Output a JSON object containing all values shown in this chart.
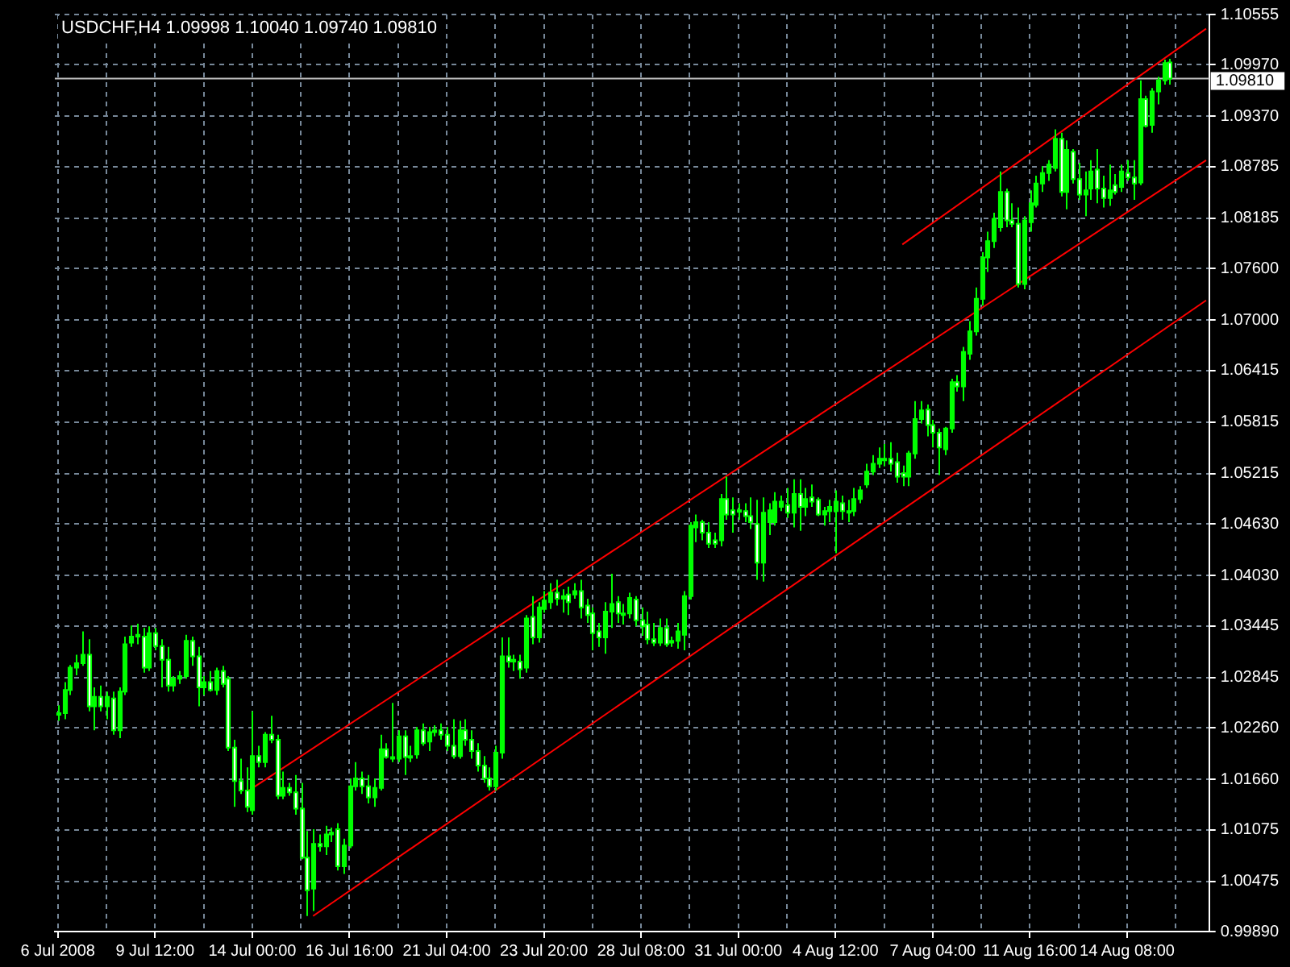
{
  "chart_data": {
    "type": "candlestick",
    "title": "USDCHF,H4 1.09998 1.10040 1.09740 1.09810",
    "color": "#00ff00",
    "colors": [
      "#00ff00",
      "#00ff00",
      "#00ff00",
      "#00ff00",
      "#00ff00",
      "#ffffff",
      "#00ff00",
      "#ffffff",
      "#00ff00",
      "#ffffff",
      "#00ff00",
      "#00ff00",
      "#00ff00",
      "#00ff00",
      "#ffffff",
      "#00ff00",
      "#ffffff",
      "#ffffff",
      "#ffffff",
      "#00ff00",
      "#00ff00",
      "#00ff00",
      "#ffffff",
      "#ffffff",
      "#00ff00",
      "#ffffff",
      "#00ff00",
      "#ffffff",
      "#ffffff",
      "#ffffff",
      "#ffffff",
      "#ffffff",
      "#00ff00",
      "#ffffff",
      "#00ff00",
      "#ffffff",
      "#ffffff",
      "#00ff00",
      "#ffffff",
      "#ffffff",
      "#ffffff",
      "#ffffff",
      "#00ff00",
      "#ffffff",
      "#00ff00",
      "#00ff00",
      "#ffffff",
      "#00ff00",
      "#00ff00",
      "#00ff00",
      "#ffffff",
      "#ffffff",
      "#00ff00",
      "#00ff00",
      "#ffffff",
      "#ffffff",
      "#00ff00",
      "#ffffff",
      "#00ff00",
      "#00ff00",
      "#ffffff",
      "#00ff00",
      "#00ff00",
      "#ffffff",
      "#ffffff",
      "#ffffff",
      "#00ff00",
      "#ffffff",
      "#ffffff",
      "#ffffff",
      "#ffffff",
      "#ffffff",
      "#00ff00",
      "#00ff00",
      "#ffffff",
      "#00ff00",
      "#ffffff",
      "#00ff00",
      "#ffffff",
      "#00ff00",
      "#00ff00",
      "#00ff00",
      "#ffffff",
      "#00ff00",
      "#ffffff",
      "#00ff00",
      "#ffffff",
      "#ffffff",
      "#ffffff",
      "#ffffff",
      "#00ff00",
      "#00ff00",
      "#ffffff",
      "#ffffff",
      "#00ff00",
      "#ffffff",
      "#ffffff",
      "#ffffff",
      "#ffffff",
      "#00ff00",
      "#ffffff",
      "#00ff00",
      "#00ff00",
      "#00ff00",
      "#00ff00",
      "#00ff00",
      "#ffffff",
      "#ffffff",
      "#ffffff",
      "#00ff00",
      "#ffffff",
      "#ffffff",
      "#ffffff",
      "#ffffff",
      "#ffffff",
      "#ffffff",
      "#00ff00",
      "#00ff00",
      "#00ff00",
      "#00ff00",
      "#ffffff",
      "#00ff00",
      "#ffffff",
      "#00ff00",
      "#ffffff",
      "#ffffff",
      "#00ff00",
      "#00ff00",
      "#00ff00",
      "#ffffff",
      "#ffffff",
      "#00ff00",
      "#00ff00",
      "#00ff00",
      "#00ff00",
      "#00ff00",
      "#ffffff",
      "#ffffff",
      "#ffffff",
      "#ffffff",
      "#00ff00",
      "#00ff00",
      "#00ff00",
      "#ffffff",
      "#ffffff",
      "#ffffff",
      "#00ff00",
      "#00ff00",
      "#ffffff",
      "#00ff00",
      "#00ff00",
      "#00ff00",
      "#00ff00",
      "#00ff00",
      "#00ff00",
      "#00ff00",
      "#ffffff",
      "#ffffff",
      "#ffffff",
      "#00ff00",
      "#00ff00",
      "#00ff00",
      "#00ff00",
      "#00ff00",
      "#00ff00",
      "#ffffff",
      "#00ff00",
      "#ffffff",
      "#ffffff",
      "#00ff00",
      "#00ff00",
      "#ffffff",
      "#ffffff",
      "#00ff00",
      "#ffffff",
      "#00ff00",
      "#ffffff",
      "#ffffff",
      "#00ff00",
      "#ffffff",
      "#00ff00",
      "#00ff00",
      "#00ff00",
      "#ffffff",
      null,
      null,
      null,
      null,
      null,
      null
    ],
    "categories": [
      "6 Jul 2008",
      null,
      null,
      null,
      null,
      null,
      null,
      null,
      null,
      null,
      null,
      null,
      null,
      null,
      null,
      null,
      "9 Jul 12:00",
      null,
      null,
      null,
      null,
      null,
      null,
      null,
      null,
      null,
      null,
      null,
      null,
      null,
      null,
      null,
      "14 Jul 00:00",
      null,
      null,
      null,
      null,
      null,
      null,
      null,
      null,
      null,
      null,
      null,
      null,
      null,
      null,
      null,
      "16 Jul 16:00",
      null,
      null,
      null,
      null,
      null,
      null,
      null,
      null,
      null,
      null,
      null,
      null,
      null,
      null,
      null,
      "21 Jul 04:00",
      null,
      null,
      null,
      null,
      null,
      null,
      null,
      null,
      null,
      null,
      null,
      null,
      null,
      null,
      null,
      "23 Jul 20:00",
      null,
      null,
      null,
      null,
      null,
      null,
      null,
      null,
      null,
      null,
      null,
      null,
      null,
      null,
      null,
      "28 Jul 08:00",
      null,
      null,
      null,
      null,
      null,
      null,
      null,
      null,
      null,
      null,
      null,
      null,
      null,
      null,
      null,
      "31 Jul 00:00",
      null,
      null,
      null,
      null,
      null,
      null,
      null,
      null,
      null,
      null,
      null,
      null,
      null,
      null,
      null,
      "4 Aug 12:00",
      null,
      null,
      null,
      null,
      null,
      null,
      null,
      null,
      null,
      null,
      null,
      null,
      null,
      null,
      null,
      "7 Aug 04:00",
      null,
      null,
      null,
      null,
      null,
      null,
      null,
      null,
      null,
      null,
      null,
      null,
      null,
      null,
      null,
      "11 Aug 16:00",
      null,
      null,
      null,
      null,
      null,
      null,
      null,
      null,
      null,
      null,
      null,
      null,
      null,
      null,
      null,
      "14 Aug 08:00",
      null,
      null,
      null,
      null,
      null,
      null,
      null,
      null,
      null,
      null,
      null,
      null,
      null
    ],
    "ohlc": [
      [
        1.0241,
        1.0252,
        1.0234,
        1.0243
      ],
      [
        1.0243,
        1.0279,
        1.0236,
        1.027
      ],
      [
        1.027,
        1.0299,
        1.0264,
        1.0296
      ],
      [
        1.0296,
        1.0311,
        1.0287,
        1.0301
      ],
      [
        1.0301,
        1.0338,
        1.0298,
        1.0311
      ],
      [
        1.0311,
        1.0329,
        1.0245,
        1.0251
      ],
      [
        1.0251,
        1.0273,
        1.0223,
        1.0262
      ],
      [
        1.0262,
        1.0275,
        1.0245,
        1.0251
      ],
      [
        1.0251,
        1.0268,
        1.0236,
        1.0262
      ],
      [
        1.026,
        1.0268,
        1.0218,
        1.0223
      ],
      [
        1.0223,
        1.0273,
        1.0214,
        1.0268
      ],
      [
        1.0268,
        1.0332,
        1.0264,
        1.0323
      ],
      [
        1.0325,
        1.0345,
        1.032,
        1.0332
      ],
      [
        1.0332,
        1.0347,
        1.0323,
        1.0334
      ],
      [
        1.0332,
        1.0342,
        1.029,
        1.0296
      ],
      [
        1.0296,
        1.0344,
        1.0292,
        1.0336
      ],
      [
        1.0336,
        1.0342,
        1.0316,
        1.0321
      ],
      [
        1.0321,
        1.0329,
        1.0273,
        1.0305
      ],
      [
        1.0305,
        1.032,
        1.0268,
        1.0275
      ],
      [
        1.0275,
        1.0286,
        1.0268,
        1.0283
      ],
      [
        1.0283,
        1.0292,
        1.0277,
        1.0286
      ],
      [
        1.0286,
        1.0334,
        1.0283,
        1.0327
      ],
      [
        1.0327,
        1.0332,
        1.0298,
        1.0309
      ],
      [
        1.0309,
        1.032,
        1.0251,
        1.0273
      ],
      [
        1.0273,
        1.0286,
        1.0264,
        1.0279
      ],
      [
        1.0279,
        1.0292,
        1.0268,
        1.027
      ],
      [
        1.027,
        1.0296,
        1.0264,
        1.0292
      ],
      [
        1.0292,
        1.0298,
        1.0273,
        1.0277
      ],
      [
        1.0283,
        1.0286,
        1.0199,
        1.0203
      ],
      [
        1.0203,
        1.0212,
        1.0134,
        1.0164
      ],
      [
        1.0164,
        1.019,
        1.0149,
        1.0153
      ],
      [
        1.0153,
        1.018,
        1.0128,
        1.0134
      ],
      [
        1.013,
        1.0245,
        1.0125,
        1.0193
      ],
      [
        1.0193,
        1.0205,
        1.018,
        1.0186
      ],
      [
        1.0186,
        1.0221,
        1.018,
        1.0218
      ],
      [
        1.0218,
        1.024,
        1.0208,
        1.0212
      ],
      [
        1.0212,
        1.0218,
        1.0143,
        1.0147
      ],
      [
        1.0147,
        1.0175,
        1.0143,
        1.0156
      ],
      [
        1.0156,
        1.0162,
        1.0147,
        1.0151
      ],
      [
        1.0151,
        1.0171,
        1.0125,
        1.0132
      ],
      [
        1.0132,
        1.0162,
        1.0073,
        1.0075
      ],
      [
        1.0075,
        1.0106,
        1.0007,
        1.0037
      ],
      [
        1.0039,
        1.0108,
        1.0013,
        1.0091
      ],
      [
        1.0091,
        1.0102,
        1.0082,
        1.0088
      ],
      [
        1.0088,
        1.0112,
        1.0078,
        1.0102
      ],
      [
        1.0102,
        1.011,
        1.0093,
        1.0104
      ],
      [
        1.0108,
        1.0115,
        1.006,
        1.0065
      ],
      [
        1.0065,
        1.0097,
        1.0056,
        1.0089
      ],
      [
        1.0089,
        1.0167,
        1.0086,
        1.0158
      ],
      [
        1.0158,
        1.0186,
        1.0153,
        1.0167
      ],
      [
        1.0167,
        1.0175,
        1.0149,
        1.0158
      ],
      [
        1.0158,
        1.0171,
        1.0138,
        1.0145
      ],
      [
        1.0145,
        1.0167,
        1.0134,
        1.0156
      ],
      [
        1.0156,
        1.0218,
        1.0153,
        1.0201
      ],
      [
        1.0201,
        1.0208,
        1.019,
        1.0192
      ],
      [
        1.0192,
        1.0255,
        1.0186,
        1.019
      ],
      [
        1.019,
        1.0223,
        1.0186,
        1.0216
      ],
      [
        1.0216,
        1.0223,
        1.0171,
        1.0192
      ],
      [
        1.0192,
        1.0205,
        1.0186,
        1.0193
      ],
      [
        1.0195,
        1.0227,
        1.019,
        1.0223
      ],
      [
        1.0223,
        1.0231,
        1.0205,
        1.0208
      ],
      [
        1.021,
        1.0227,
        1.0199,
        1.0221
      ],
      [
        1.0221,
        1.0229,
        1.0216,
        1.0223
      ],
      [
        1.0223,
        1.0231,
        1.0212,
        1.0218
      ],
      [
        1.0218,
        1.0227,
        1.0199,
        1.0205
      ],
      [
        1.0205,
        1.0236,
        1.019,
        1.0193
      ],
      [
        1.0193,
        1.0234,
        1.019,
        1.0223
      ],
      [
        1.0223,
        1.0236,
        1.0205,
        1.0212
      ],
      [
        1.0212,
        1.0223,
        1.019,
        1.0199
      ],
      [
        1.0199,
        1.0208,
        1.0175,
        1.0182
      ],
      [
        1.0182,
        1.0193,
        1.0162,
        1.0167
      ],
      [
        1.0167,
        1.018,
        1.0153,
        1.0158
      ],
      [
        1.0158,
        1.0205,
        1.0153,
        1.0197
      ],
      [
        1.0197,
        1.0331,
        1.019,
        1.0309
      ],
      [
        1.0309,
        1.0331,
        1.0296,
        1.0303
      ],
      [
        1.0303,
        1.0311,
        1.0292,
        1.0305
      ],
      [
        1.0303,
        1.0311,
        1.0283,
        1.0294
      ],
      [
        1.0296,
        1.0357,
        1.029,
        1.0353
      ],
      [
        1.0355,
        1.0379,
        1.0323,
        1.0331
      ],
      [
        1.0331,
        1.0372,
        1.0325,
        1.0366
      ],
      [
        1.0364,
        1.0385,
        1.036,
        1.0374
      ],
      [
        1.0372,
        1.0394,
        1.0364,
        1.0383
      ],
      [
        1.0383,
        1.0398,
        1.0368,
        1.0376
      ],
      [
        1.0376,
        1.0387,
        1.036,
        1.0379
      ],
      [
        1.0381,
        1.039,
        1.0357,
        1.0372
      ],
      [
        1.0381,
        1.0394,
        1.0376,
        1.0385
      ],
      [
        1.0385,
        1.0398,
        1.0353,
        1.0366
      ],
      [
        1.0368,
        1.0376,
        1.0348,
        1.0357
      ],
      [
        1.0359,
        1.0366,
        1.0316,
        1.0336
      ],
      [
        1.0338,
        1.0348,
        1.032,
        1.0331
      ],
      [
        1.0331,
        1.0372,
        1.0312,
        1.0361
      ],
      [
        1.0361,
        1.0405,
        1.0342,
        1.037
      ],
      [
        1.0372,
        1.0379,
        1.0348,
        1.0359
      ],
      [
        1.0359,
        1.037,
        1.0346,
        1.0357
      ],
      [
        1.0359,
        1.0383,
        1.0353,
        1.0377
      ],
      [
        1.0375,
        1.0379,
        1.0344,
        1.0351
      ],
      [
        1.0351,
        1.0366,
        1.0333,
        1.0344
      ],
      [
        1.0346,
        1.0361,
        1.0323,
        1.0329
      ],
      [
        1.0329,
        1.0348,
        1.0321,
        1.0325
      ],
      [
        1.0325,
        1.0353,
        1.0321,
        1.0342
      ],
      [
        1.0342,
        1.0353,
        1.032,
        1.0323
      ],
      [
        1.0325,
        1.0332,
        1.032,
        1.0327
      ],
      [
        1.0327,
        1.0348,
        1.0318,
        1.0338
      ],
      [
        1.0334,
        1.0385,
        1.0316,
        1.0379
      ],
      [
        1.0379,
        1.0465,
        1.0375,
        1.0461
      ],
      [
        1.0459,
        1.0474,
        1.0442,
        1.0465
      ],
      [
        1.0465,
        1.0468,
        1.0444,
        1.0453
      ],
      [
        1.0453,
        1.0465,
        1.0435,
        1.044
      ],
      [
        1.0444,
        1.0453,
        1.0435,
        1.044
      ],
      [
        1.0444,
        1.0498,
        1.0437,
        1.0492
      ],
      [
        1.0492,
        1.0518,
        1.0468,
        1.0474
      ],
      [
        1.0479,
        1.0494,
        1.0453,
        1.0474
      ],
      [
        1.0479,
        1.0487,
        1.0468,
        1.0478
      ],
      [
        1.0478,
        1.0487,
        1.0465,
        1.0472
      ],
      [
        1.0472,
        1.0494,
        1.0457,
        1.0465
      ],
      [
        1.0463,
        1.0491,
        1.0398,
        1.0418
      ],
      [
        1.0418,
        1.0494,
        1.0396,
        1.0476
      ],
      [
        1.0465,
        1.0487,
        1.045,
        1.0479
      ],
      [
        1.0465,
        1.05,
        1.0461,
        1.0489
      ],
      [
        1.0483,
        1.0496,
        1.0478,
        1.0489
      ],
      [
        1.0485,
        1.0505,
        1.047,
        1.0476
      ],
      [
        1.0476,
        1.0515,
        1.0459,
        1.0498
      ],
      [
        1.0498,
        1.0515,
        1.0455,
        1.0483
      ],
      [
        1.0483,
        1.0505,
        1.0472,
        1.0492
      ],
      [
        1.0494,
        1.0509,
        1.0483,
        1.0489
      ],
      [
        1.0491,
        1.0494,
        1.0472,
        1.0474
      ],
      [
        1.0474,
        1.0483,
        1.0461,
        1.0478
      ],
      [
        1.0478,
        1.0491,
        1.0465,
        1.0483
      ],
      [
        1.0478,
        1.0502,
        1.0429,
        1.0489
      ],
      [
        1.0487,
        1.0496,
        1.0468,
        1.0478
      ],
      [
        1.0478,
        1.0491,
        1.0465,
        1.0476
      ],
      [
        1.0478,
        1.0505,
        1.0472,
        1.0492
      ],
      [
        1.0492,
        1.0507,
        1.0487,
        1.0502
      ],
      [
        1.0509,
        1.0533,
        1.0505,
        1.0524
      ],
      [
        1.0524,
        1.0543,
        1.052,
        1.0533
      ],
      [
        1.0533,
        1.0552,
        1.0528,
        1.0539
      ],
      [
        1.0539,
        1.0556,
        1.053,
        1.0537
      ],
      [
        1.0539,
        1.0558,
        1.0524,
        1.0533
      ],
      [
        1.0535,
        1.0546,
        1.0511,
        1.0518
      ],
      [
        1.0522,
        1.0531,
        1.0507,
        1.0518
      ],
      [
        1.0518,
        1.0548,
        1.0507,
        1.0545
      ],
      [
        1.0545,
        1.0606,
        1.0539,
        1.0585
      ],
      [
        1.0585,
        1.0606,
        1.058,
        1.0595
      ],
      [
        1.0596,
        1.0602,
        1.0565,
        1.0578
      ],
      [
        1.0578,
        1.0584,
        1.0552,
        1.0569
      ],
      [
        1.0569,
        1.0574,
        1.052,
        1.0552
      ],
      [
        1.055,
        1.0576,
        1.0543,
        1.0574
      ],
      [
        1.0574,
        1.0632,
        1.0569,
        1.0628
      ],
      [
        1.0628,
        1.0636,
        1.0617,
        1.0623
      ],
      [
        1.0623,
        1.0669,
        1.0606,
        1.0663
      ],
      [
        1.0661,
        1.0699,
        1.0654,
        1.0687
      ],
      [
        1.0687,
        1.0738,
        1.0682,
        1.0725
      ],
      [
        1.0725,
        1.0779,
        1.0717,
        1.0773
      ],
      [
        1.0773,
        1.0803,
        1.0756,
        1.0792
      ],
      [
        1.0792,
        1.0825,
        1.0784,
        1.0818
      ],
      [
        1.0808,
        1.0873,
        1.0803,
        1.0849
      ],
      [
        1.0849,
        1.0853,
        1.0808,
        1.0816
      ],
      [
        1.0816,
        1.0836,
        1.0808,
        1.0812
      ],
      [
        1.0812,
        1.0831,
        1.0738,
        1.0742
      ],
      [
        1.0742,
        1.0821,
        1.0736,
        1.0816
      ],
      [
        1.0814,
        1.0851,
        1.0803,
        1.0836
      ],
      [
        1.0834,
        1.0868,
        1.0831,
        1.0859
      ],
      [
        1.0859,
        1.0879,
        1.0849,
        1.0871
      ],
      [
        1.0871,
        1.0886,
        1.0862,
        1.0881
      ],
      [
        1.0877,
        1.0922,
        1.0873,
        1.0911
      ],
      [
        1.0911,
        1.0918,
        1.0844,
        1.0849
      ],
      [
        1.0849,
        1.0909,
        1.0829,
        1.0898
      ],
      [
        1.0896,
        1.0899,
        1.0859,
        1.0864
      ],
      [
        1.0864,
        1.0883,
        1.084,
        1.0846
      ],
      [
        1.0846,
        1.0873,
        1.0821,
        1.0851
      ],
      [
        1.0853,
        1.0886,
        1.084,
        1.0873
      ],
      [
        1.0875,
        1.0899,
        1.0836,
        1.0853
      ],
      [
        1.0853,
        1.0868,
        1.0831,
        1.0842
      ],
      [
        1.0842,
        1.0881,
        1.0833,
        1.0851
      ],
      [
        1.0857,
        1.087,
        1.0846,
        1.0849
      ],
      [
        1.0855,
        1.0881,
        1.0849,
        1.0873
      ],
      [
        1.0871,
        1.0886,
        1.0862,
        1.0866
      ],
      [
        1.0866,
        1.0886,
        1.084,
        1.0859
      ],
      [
        1.086,
        1.0979,
        1.0857,
        1.0957
      ],
      [
        1.0957,
        1.0961,
        1.0924,
        1.0926
      ],
      [
        1.0927,
        1.097,
        1.0918,
        1.0966
      ],
      [
        1.0966,
        1.0983,
        1.0951,
        1.0979
      ],
      [
        1.0979,
        1.1003,
        1.0974,
        1.0999
      ],
      [
        1.09998,
        1.1004,
        1.0974,
        1.0981
      ],
      null,
      null,
      null,
      null,
      null,
      null
    ],
    "series": [
      {
        "type": "line",
        "color": "#ff0000",
        "values": [
          null,
          null,
          null,
          null,
          null,
          null,
          null,
          null,
          null,
          null,
          null,
          null,
          null,
          null,
          null,
          null,
          null,
          null,
          null,
          null,
          null,
          null,
          null,
          null,
          null,
          null,
          null,
          null,
          null,
          null,
          null,
          null,
          null,
          null,
          null,
          null,
          null,
          null,
          null,
          null,
          null,
          null,
          null,
          null,
          null,
          null,
          null,
          null,
          null,
          null,
          null,
          null,
          null,
          null,
          null,
          null,
          null,
          null,
          null,
          null,
          null,
          null,
          null,
          null,
          null,
          null,
          null,
          null,
          null,
          null,
          null,
          null,
          null,
          null,
          null,
          null,
          null,
          null,
          null,
          null,
          null,
          null,
          null,
          null,
          null,
          null,
          null,
          null,
          null,
          null,
          null,
          null,
          null,
          null,
          null,
          null,
          null,
          null,
          null,
          null,
          null,
          null,
          null,
          null,
          null,
          null,
          null,
          null,
          null,
          null,
          null,
          null,
          null,
          null,
          null,
          null,
          null,
          null,
          null,
          null,
          null,
          null,
          null,
          null,
          null,
          null,
          null,
          null,
          null,
          null,
          null,
          null,
          null,
          null,
          null,
          null,
          null,
          null,
          null,
          1.0788,
          null,
          null,
          null,
          null,
          null,
          null,
          null,
          null,
          null,
          null,
          null,
          null,
          null,
          null,
          null,
          null,
          null,
          null,
          null,
          null,
          null,
          null,
          null,
          null,
          null,
          null,
          null,
          null,
          null,
          null,
          null,
          null,
          null,
          null,
          null,
          null,
          null,
          null,
          null,
          null,
          null,
          null,
          null,
          null,
          null,
          null,
          null,
          null,
          null,
          1.1039
        ]
      },
      {
        "type": "line",
        "color": "#ff0000",
        "values": [
          null,
          null,
          null,
          null,
          null,
          null,
          null,
          null,
          null,
          null,
          null,
          null,
          null,
          null,
          null,
          null,
          null,
          null,
          null,
          null,
          null,
          null,
          null,
          null,
          null,
          null,
          null,
          null,
          null,
          null,
          null,
          1.0151,
          null,
          null,
          null,
          null,
          null,
          null,
          null,
          null,
          null,
          null,
          null,
          null,
          null,
          null,
          null,
          null,
          null,
          null,
          null,
          null,
          null,
          null,
          null,
          null,
          null,
          null,
          null,
          null,
          null,
          null,
          null,
          null,
          null,
          null,
          null,
          null,
          null,
          null,
          null,
          null,
          null,
          null,
          null,
          null,
          null,
          null,
          null,
          null,
          null,
          null,
          null,
          null,
          null,
          null,
          null,
          null,
          null,
          null,
          null,
          null,
          null,
          null,
          null,
          null,
          null,
          null,
          null,
          null,
          null,
          null,
          null,
          null,
          null,
          null,
          null,
          null,
          null,
          null,
          null,
          null,
          null,
          null,
          null,
          null,
          null,
          null,
          null,
          null,
          null,
          null,
          null,
          null,
          null,
          null,
          null,
          null,
          null,
          null,
          null,
          null,
          null,
          null,
          null,
          null,
          null,
          null,
          null,
          null,
          null,
          null,
          null,
          null,
          null,
          null,
          null,
          null,
          null,
          null,
          null,
          null,
          null,
          null,
          null,
          null,
          null,
          null,
          null,
          null,
          null,
          null,
          null,
          null,
          null,
          null,
          null,
          null,
          null,
          null,
          null,
          null,
          null,
          null,
          null,
          null,
          null,
          null,
          null,
          null,
          null,
          null,
          null,
          null,
          null,
          null,
          null,
          null,
          null,
          1.0886
        ]
      },
      {
        "type": "line",
        "color": "#ff0000",
        "values": [
          null,
          null,
          null,
          null,
          null,
          null,
          null,
          null,
          null,
          null,
          null,
          null,
          null,
          null,
          null,
          null,
          null,
          null,
          null,
          null,
          null,
          null,
          null,
          null,
          null,
          null,
          null,
          null,
          null,
          null,
          null,
          null,
          null,
          null,
          null,
          null,
          null,
          null,
          null,
          null,
          null,
          null,
          1.0007,
          null,
          null,
          null,
          null,
          null,
          null,
          null,
          null,
          null,
          null,
          null,
          null,
          null,
          null,
          null,
          null,
          null,
          null,
          null,
          null,
          null,
          null,
          null,
          null,
          null,
          null,
          null,
          null,
          null,
          null,
          null,
          null,
          null,
          null,
          null,
          null,
          null,
          null,
          null,
          null,
          null,
          null,
          null,
          null,
          null,
          null,
          null,
          null,
          null,
          null,
          null,
          null,
          null,
          null,
          null,
          null,
          null,
          null,
          null,
          null,
          null,
          null,
          null,
          null,
          null,
          null,
          null,
          null,
          null,
          null,
          null,
          null,
          null,
          null,
          null,
          null,
          null,
          null,
          null,
          null,
          null,
          null,
          null,
          null,
          null,
          null,
          null,
          null,
          null,
          null,
          null,
          null,
          null,
          null,
          null,
          null,
          null,
          null,
          null,
          null,
          null,
          null,
          null,
          null,
          null,
          null,
          null,
          null,
          null,
          null,
          null,
          null,
          null,
          null,
          null,
          null,
          null,
          null,
          null,
          null,
          null,
          null,
          null,
          null,
          null,
          null,
          null,
          null,
          null,
          null,
          null,
          null,
          null,
          null,
          null,
          null,
          null,
          null,
          null,
          null,
          null,
          null,
          null,
          null,
          null,
          null,
          1.0723
        ]
      }
    ],
    "ylim": [
      0.9989,
      1.10555
    ],
    "yticks": [
      {
        "value": 0.9989,
        "label": "0.99890"
      },
      1.00475,
      1.01075,
      {
        "value": 1.0166,
        "label": "1.01660"
      },
      {
        "value": 1.0226,
        "label": "1.02260"
      },
      1.02845,
      1.03445,
      {
        "value": 1.0403,
        "label": "1.04030"
      },
      {
        "value": 1.0463,
        "label": "1.04630"
      },
      1.05215,
      1.05815,
      1.06415,
      {
        "value": 1.07,
        "label": "1.07000"
      },
      {
        "value": 1.076,
        "label": "1.07600"
      },
      1.08185,
      1.08785,
      {
        "value": 1.0937,
        "label": "1.09370"
      },
      {
        "value": 1.0997,
        "label": "1.09970"
      },
      1.10555
    ],
    "ref_lines": [
      {
        "axis": "y",
        "value": 1.0981,
        "label": "1.09810",
        "color": "#c0c0c0"
      }
    ],
    "grid": true
  }
}
